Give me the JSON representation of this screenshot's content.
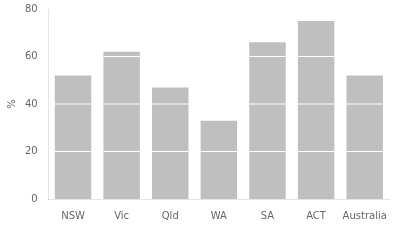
{
  "chart_data": {
    "type": "bar",
    "categories": [
      "NSW",
      "Vic",
      "Qld",
      "WA",
      "SA",
      "ACT",
      "Australia"
    ],
    "values": [
      52,
      62,
      47,
      33,
      66,
      75,
      52
    ],
    "color": "#c0bfbf",
    "ylabel": "%",
    "ylim": [
      0,
      80
    ],
    "yticks": [
      0,
      20,
      40,
      60,
      80
    ],
    "grid": false
  }
}
